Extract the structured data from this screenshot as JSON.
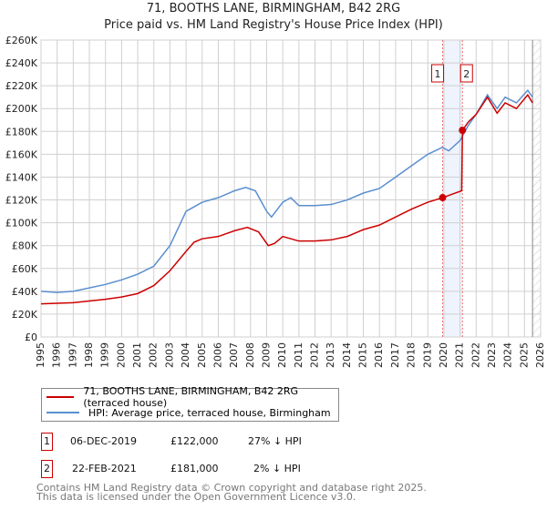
{
  "chart_data": {
    "type": "line",
    "title": "71, BOOTHS LANE, BIRMINGHAM, B42 2RG",
    "subtitle": "Price paid vs. HM Land Registry's House Price Index (HPI)",
    "xlim": [
      1995,
      2026
    ],
    "ylim": [
      0,
      260000
    ],
    "x_ticks": [
      "1995",
      "1996",
      "1997",
      "1998",
      "1999",
      "2000",
      "2001",
      "2002",
      "2003",
      "2004",
      "2005",
      "2006",
      "2007",
      "2008",
      "2009",
      "2010",
      "2011",
      "2012",
      "2013",
      "2014",
      "2015",
      "2016",
      "2017",
      "2018",
      "2019",
      "2020",
      "2021",
      "2022",
      "2023",
      "2024",
      "2025",
      "2026"
    ],
    "y_ticks": [
      "£0",
      "£20K",
      "£40K",
      "£60K",
      "£80K",
      "£100K",
      "£120K",
      "£140K",
      "£160K",
      "£180K",
      "£200K",
      "£220K",
      "£240K",
      "£260K"
    ],
    "series": [
      {
        "name": "71, BOOTHS LANE, BIRMINGHAM, B42 2RG (terraced house)",
        "color": "#cc0000",
        "points": [
          [
            1995,
            29000
          ],
          [
            1997,
            30000
          ],
          [
            1999,
            33000
          ],
          [
            2000,
            35000
          ],
          [
            2001,
            38000
          ],
          [
            2002,
            45000
          ],
          [
            2003,
            58000
          ],
          [
            2004,
            75000
          ],
          [
            2004.5,
            83000
          ],
          [
            2005,
            86000
          ],
          [
            2006,
            88000
          ],
          [
            2007,
            93000
          ],
          [
            2007.8,
            96000
          ],
          [
            2008.5,
            92000
          ],
          [
            2009.1,
            80000
          ],
          [
            2009.5,
            82000
          ],
          [
            2010,
            88000
          ],
          [
            2011,
            84000
          ],
          [
            2012,
            84000
          ],
          [
            2013,
            85000
          ],
          [
            2014,
            88000
          ],
          [
            2015,
            94000
          ],
          [
            2016,
            98000
          ],
          [
            2017,
            105000
          ],
          [
            2018,
            112000
          ],
          [
            2019,
            118000
          ],
          [
            2019.92,
            122000
          ],
          [
            2020.5,
            125000
          ],
          [
            2021.1,
            128000
          ],
          [
            2021.15,
            181000
          ],
          [
            2021.5,
            188000
          ],
          [
            2022,
            195000
          ],
          [
            2022.7,
            210000
          ],
          [
            2023.3,
            196000
          ],
          [
            2023.8,
            205000
          ],
          [
            2024.5,
            200000
          ],
          [
            2025.2,
            212000
          ],
          [
            2025.5,
            205000
          ]
        ]
      },
      {
        "name": "HPI: Average price, terraced house, Birmingham",
        "color": "#5b8fd0",
        "points": [
          [
            1995,
            40000
          ],
          [
            1996,
            39000
          ],
          [
            1997,
            40000
          ],
          [
            1998,
            43000
          ],
          [
            1999,
            46000
          ],
          [
            2000,
            50000
          ],
          [
            2001,
            55000
          ],
          [
            2002,
            62000
          ],
          [
            2003,
            80000
          ],
          [
            2003.5,
            95000
          ],
          [
            2004,
            110000
          ],
          [
            2004.5,
            114000
          ],
          [
            2005,
            118000
          ],
          [
            2006,
            122000
          ],
          [
            2007,
            128000
          ],
          [
            2007.7,
            131000
          ],
          [
            2008.3,
            128000
          ],
          [
            2009,
            110000
          ],
          [
            2009.3,
            105000
          ],
          [
            2010,
            118000
          ],
          [
            2010.5,
            122000
          ],
          [
            2011,
            115000
          ],
          [
            2012,
            115000
          ],
          [
            2013,
            116000
          ],
          [
            2014,
            120000
          ],
          [
            2015,
            126000
          ],
          [
            2016,
            130000
          ],
          [
            2017,
            140000
          ],
          [
            2018,
            150000
          ],
          [
            2019,
            160000
          ],
          [
            2019.9,
            166000
          ],
          [
            2020.3,
            163000
          ],
          [
            2021,
            172000
          ],
          [
            2021.5,
            185000
          ],
          [
            2022,
            195000
          ],
          [
            2022.7,
            212000
          ],
          [
            2023.3,
            200000
          ],
          [
            2023.8,
            210000
          ],
          [
            2024.5,
            205000
          ],
          [
            2025.2,
            216000
          ],
          [
            2025.5,
            210000
          ]
        ]
      }
    ],
    "sales": [
      {
        "label": "1",
        "x": 2019.92,
        "price": 122000,
        "date": "06-DEC-2019",
        "price_text": "£122,000",
        "hpi_text": "27% ↓ HPI"
      },
      {
        "label": "2",
        "x": 2021.15,
        "price": 181000,
        "date": "22-FEB-2021",
        "price_text": "£181,000",
        "hpi_text": "2% ↓ HPI"
      }
    ],
    "forecast_start": 2025.5
  },
  "footer": {
    "line1": "Contains HM Land Registry data © Crown copyright and database right 2025.",
    "line2": "This data is licensed under the Open Government Licence v3.0."
  }
}
